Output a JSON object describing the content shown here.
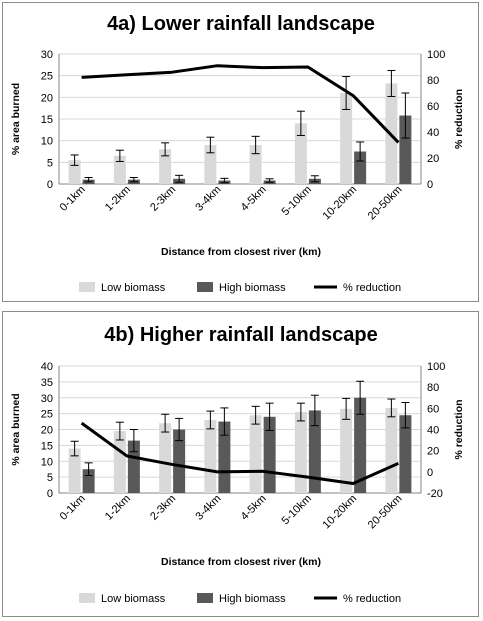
{
  "colors": {
    "low": "#d9d9d9",
    "high": "#595959",
    "line": "#000000",
    "grid": "#d9d9d9"
  },
  "chart_data": [
    {
      "type": "bar",
      "title": "4a) Lower rainfall landscape",
      "xlabel": "Distance  from closest river (km)",
      "ylabel": "% area burned",
      "y2label": "% reduction",
      "categories": [
        "0-1km",
        "1-2km",
        "2-3km",
        "3-4km",
        "4-5km",
        "5-10km",
        "10-20km",
        "20-50km"
      ],
      "ylim": [
        0,
        30
      ],
      "yticks": [
        "0",
        "5",
        "10",
        "15",
        "20",
        "25",
        "30"
      ],
      "y2lim": [
        0,
        100
      ],
      "y2ticks": [
        "0",
        "20",
        "40",
        "60",
        "80",
        "100"
      ],
      "grid": true,
      "legend_position": "bottom",
      "series": [
        {
          "name": "Low biomass",
          "type": "bar",
          "axis": "left",
          "values": [
            5.5,
            6.5,
            8,
            9,
            9,
            14,
            21,
            23.2
          ],
          "error": [
            1.2,
            1.3,
            1.5,
            1.8,
            2,
            2.8,
            3.8,
            3
          ]
        },
        {
          "name": "High biomass",
          "type": "bar",
          "axis": "left",
          "values": [
            1,
            1,
            1.2,
            0.8,
            0.8,
            1.2,
            7.5,
            15.8
          ],
          "error": [
            0.5,
            0.5,
            0.8,
            0.5,
            0.4,
            0.7,
            2.2,
            5.2
          ]
        },
        {
          "name": "% reduction",
          "type": "line",
          "axis": "right",
          "values": [
            82,
            84,
            86,
            91,
            89.5,
            90,
            68,
            32
          ]
        }
      ]
    },
    {
      "type": "bar",
      "title": "4b) Higher rainfall landscape",
      "xlabel": "Distance  from closest river (km)",
      "ylabel": "% area burned",
      "y2label": "% reduction",
      "categories": [
        "0-1km",
        "1-2km",
        "2-3km",
        "3-4km",
        "4-5km",
        "5-10km",
        "10-20km",
        "20-50km"
      ],
      "ylim": [
        0,
        40
      ],
      "yticks": [
        "0",
        "5",
        "10",
        "15",
        "20",
        "25",
        "30",
        "35",
        "40"
      ],
      "y2lim": [
        -20,
        100
      ],
      "y2ticks": [
        "-20",
        "0",
        "20",
        "40",
        "60",
        "80",
        "100"
      ],
      "grid": true,
      "legend_position": "bottom",
      "series": [
        {
          "name": "Low biomass",
          "type": "bar",
          "axis": "left",
          "values": [
            14,
            19.5,
            22,
            23,
            24.5,
            25.5,
            26.5,
            26.8
          ],
          "error": [
            2.3,
            2.8,
            2.8,
            2.8,
            2.8,
            2.8,
            3.3,
            2.8
          ]
        },
        {
          "name": "High biomass",
          "type": "bar",
          "axis": "left",
          "values": [
            7.5,
            16.5,
            20,
            22.5,
            24,
            26,
            30,
            24.5
          ],
          "error": [
            2,
            3.5,
            3.5,
            4.3,
            4.3,
            4.8,
            5.2,
            4
          ]
        },
        {
          "name": "% reduction",
          "type": "line",
          "axis": "right",
          "values": [
            46,
            15,
            7,
            0,
            0.5,
            -5,
            -11,
            8
          ]
        }
      ]
    }
  ]
}
